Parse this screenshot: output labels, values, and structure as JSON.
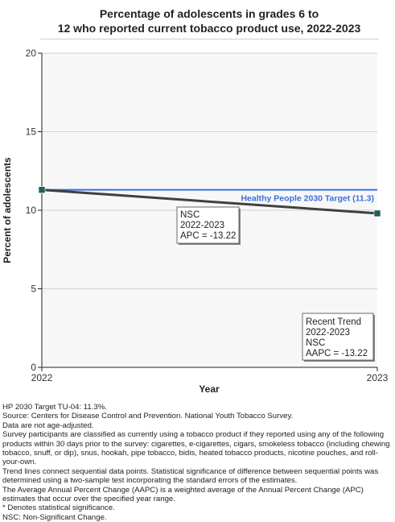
{
  "chart_data": {
    "type": "line",
    "title_lines": [
      "Percentage of adolescents in grades 6 to",
      "12 who reported current tobacco product use, 2022-2023"
    ],
    "xlabel": "Year",
    "ylabel": "Percent of adolescents",
    "x": [
      2022,
      2023
    ],
    "xlim": [
      2022,
      2023
    ],
    "ylim": [
      0,
      20
    ],
    "yticks": [
      0,
      5,
      10,
      15,
      20
    ],
    "xticks": [
      2022,
      2023
    ],
    "grid": "horizontal",
    "series": [
      {
        "values": [
          11.3,
          9.8
        ],
        "color": "#404040",
        "marker_color": "#1f5f5a"
      }
    ],
    "target": {
      "label": "Healthy People 2030 Target (11.3)",
      "value": 11.3,
      "color": "#3c6fd8"
    },
    "annotations": [
      {
        "lines": [
          "NSC",
          "2022-2023",
          "APC = -13.22"
        ]
      },
      {
        "lines": [
          "Recent Trend",
          "2022-2023",
          "NSC",
          "AAPC = -13.22"
        ]
      }
    ]
  },
  "notes": [
    "HP 2030 Target TU-04: 11.3%.",
    "Source: Centers for Disease Control and Prevention. National Youth Tobacco Survey.",
    "Data are not age-adjusted.",
    "Survey participants are classified as currently using a tobacco product if they reported using any of the following products within 30 days prior to the survey: cigarettes, e-cigarettes, cigars, smokeless tobacco (including chewing tobacco, snuff, or dip), snus, hookah, pipe tobacco, bidis, heated tobacco products, nicotine pouches, and roll-your-own.",
    "Trend lines connect sequential data points. Statistical significance of difference between sequential points was determined using a two-sample test incorporating the standard errors of the estimates.",
    "The Average Annual Percent Change (AAPC) is a weighted average of the Annual Percent Change (APC) estimates that occur over the specified year range.",
    "* Denotes statistical significance.",
    "NSC: Non-Significant Change."
  ]
}
